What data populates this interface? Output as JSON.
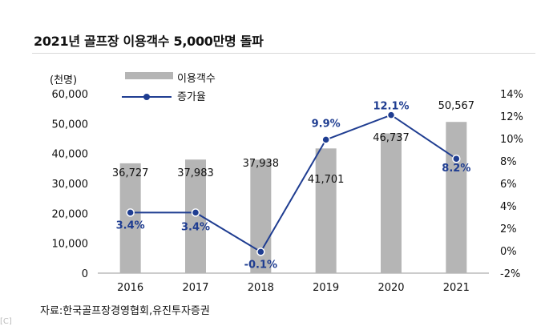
{
  "title": "2021년 골프장 이용객수 5,000만명 돌파",
  "source": "자료:한국골프장경영협회,유진투자증권",
  "corner_mark": "[C]",
  "colors": {
    "bar": "#b5b5b5",
    "line": "#1f3d91",
    "marker": "#1f3d91",
    "pct_label": "#1f3d91"
  },
  "chart_data": {
    "type": "bar",
    "categories": [
      "2016",
      "2017",
      "2018",
      "2019",
      "2020",
      "2021"
    ],
    "y_left_unit": "(천명)",
    "y_left_range": [
      0,
      60000
    ],
    "y_left_ticks": [
      "60,000",
      "50,000",
      "40,000",
      "30,000",
      "20,000",
      "10,000",
      "0"
    ],
    "y_right_range": [
      -2,
      14
    ],
    "y_right_ticks": [
      "14%",
      "12%",
      "10%",
      "8%",
      "6%",
      "4%",
      "2%",
      "0%",
      "-2%"
    ],
    "legend_position": "top-left",
    "series": [
      {
        "name": "이용객수",
        "type": "bar",
        "axis": "left",
        "values": [
          36727,
          37983,
          37938,
          41701,
          46737,
          50567
        ],
        "labels": [
          "36,727",
          "37,983",
          "37,938",
          "41,701",
          "46,737",
          "50,567"
        ]
      },
      {
        "name": "증가율",
        "type": "line",
        "axis": "right",
        "values": [
          3.4,
          3.4,
          -0.1,
          9.9,
          12.1,
          8.2
        ],
        "labels": [
          "3.4%",
          "3.4%",
          "-0.1%",
          "9.9%",
          "12.1%",
          "8.2%"
        ]
      }
    ]
  }
}
